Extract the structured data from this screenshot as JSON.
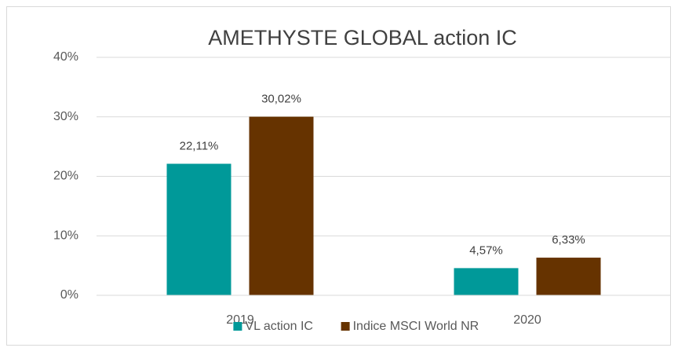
{
  "chart_data": {
    "type": "bar",
    "title": "AMETHYSTE GLOBAL action IC",
    "categories": [
      "2019",
      "2020"
    ],
    "series": [
      {
        "name": "VL action IC",
        "color": "#009999",
        "values": [
          22.11,
          4.57
        ],
        "value_labels": [
          "22,11%",
          "4,57%"
        ]
      },
      {
        "name": "Indice MSCI World NR",
        "color": "#663300",
        "values": [
          30.02,
          6.33
        ],
        "value_labels": [
          "30,02%",
          "6,33%"
        ]
      }
    ],
    "ylim": [
      0,
      40
    ],
    "yticks": [
      {
        "value": 0,
        "label": "0%"
      },
      {
        "value": 10,
        "label": "10%"
      },
      {
        "value": 20,
        "label": "20%"
      },
      {
        "value": 30,
        "label": "30%"
      },
      {
        "value": 40,
        "label": "40%"
      }
    ],
    "grid": true,
    "legend": "bottom"
  }
}
